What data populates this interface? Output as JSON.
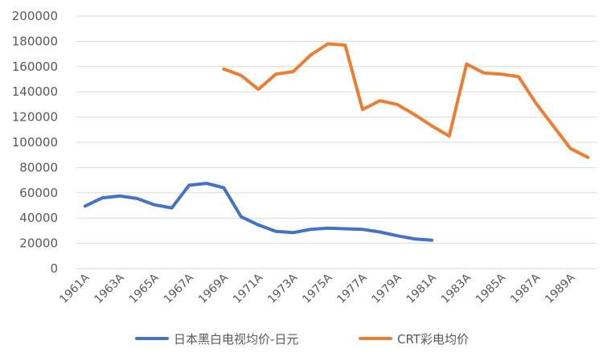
{
  "chart_data": {
    "type": "line",
    "title": "",
    "xlabel": "",
    "ylabel": "",
    "ylim": [
      0,
      200000
    ],
    "yticks": [
      "0",
      "20000",
      "40000",
      "60000",
      "80000",
      "100000",
      "120000",
      "140000",
      "160000",
      "180000",
      "200000"
    ],
    "x": [
      "1961A",
      "1962A",
      "1963A",
      "1964A",
      "1965A",
      "1966A",
      "1967A",
      "1968A",
      "1969A",
      "1970A",
      "1971A",
      "1972A",
      "1973A",
      "1974A",
      "1975A",
      "1976A",
      "1977A",
      "1978A",
      "1979A",
      "1980A",
      "1981A",
      "1982A",
      "1983A",
      "1984A",
      "1985A",
      "1986A",
      "1987A",
      "1988A",
      "1989A",
      "1990A"
    ],
    "xtick_labels": [
      "1961A",
      "1963A",
      "1965A",
      "1967A",
      "1969A",
      "1971A",
      "1973A",
      "1975A",
      "1977A",
      "1979A",
      "1981A",
      "1983A",
      "1985A",
      "1987A",
      "1989A"
    ],
    "grid": true,
    "legend_position": "bottom",
    "series": [
      {
        "name": "日本黑白电视均价-日元",
        "color": "#4472C4",
        "values": [
          49500,
          56000,
          57500,
          55500,
          50500,
          48000,
          66000,
          67500,
          64000,
          41000,
          34500,
          29500,
          28500,
          31000,
          32000,
          31500,
          31000,
          29000,
          26000,
          23500,
          22500,
          null,
          null,
          null,
          null,
          null,
          null,
          null,
          null,
          null
        ]
      },
      {
        "name": "CRT彩电均价",
        "color": "#ED7D31",
        "values": [
          null,
          null,
          null,
          null,
          null,
          null,
          null,
          null,
          158000,
          153000,
          142000,
          154000,
          156000,
          169000,
          178000,
          177000,
          126000,
          133000,
          130000,
          122000,
          113000,
          105000,
          162000,
          155000,
          154000,
          152000,
          131000,
          113000,
          95000,
          88000
        ]
      }
    ]
  }
}
